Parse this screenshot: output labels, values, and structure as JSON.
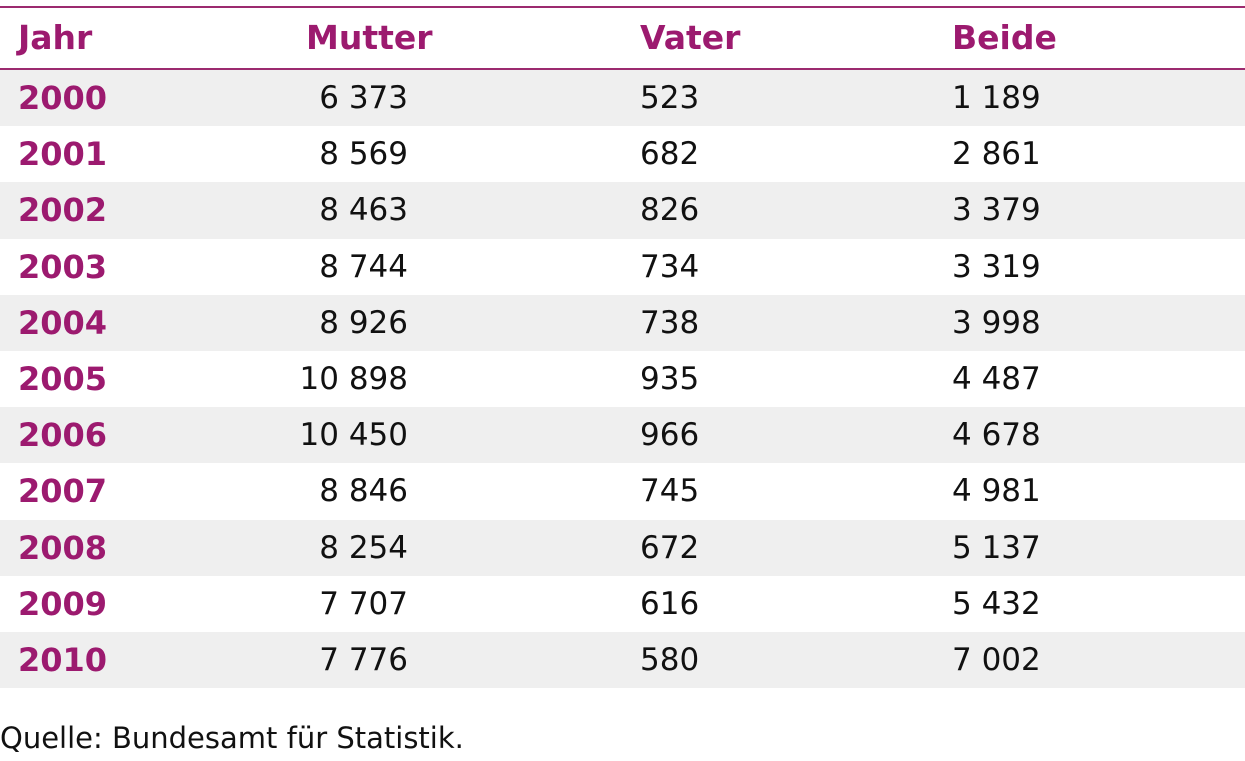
{
  "table": {
    "headers": [
      "Jahr",
      "Mutter",
      "Vater",
      "Beide"
    ],
    "rows": [
      [
        "2000",
        "6 373",
        "523",
        "1 189"
      ],
      [
        "2001",
        "8 569",
        "682",
        "2 861"
      ],
      [
        "2002",
        "8 463",
        "826",
        "3 379"
      ],
      [
        "2003",
        "8 744",
        "734",
        "3 319"
      ],
      [
        "2004",
        "8 926",
        "738",
        "3 998"
      ],
      [
        "2005",
        "10 898",
        "935",
        "4 487"
      ],
      [
        "2006",
        "10 450",
        "966",
        "4 678"
      ],
      [
        "2007",
        "8 846",
        "745",
        "4 981"
      ],
      [
        "2008",
        "8 254",
        "672",
        "5 137"
      ],
      [
        "2009",
        "7 707",
        "616",
        "5 432"
      ],
      [
        "2010",
        "7 776",
        "580",
        "7 002"
      ]
    ]
  },
  "chart_data": {
    "type": "table",
    "columns": [
      "Jahr",
      "Mutter",
      "Vater",
      "Beide"
    ],
    "x": [
      2000,
      2001,
      2002,
      2003,
      2004,
      2005,
      2006,
      2007,
      2008,
      2009,
      2010
    ],
    "series": [
      {
        "name": "Mutter",
        "values": [
          6373,
          8569,
          8463,
          8744,
          8926,
          10898,
          10450,
          8846,
          8254,
          7707,
          7776
        ]
      },
      {
        "name": "Vater",
        "values": [
          523,
          682,
          826,
          734,
          738,
          935,
          966,
          745,
          672,
          616,
          580
        ]
      },
      {
        "name": "Beide",
        "values": [
          1189,
          2861,
          3379,
          3319,
          3998,
          4487,
          4678,
          4981,
          5137,
          5432,
          7002
        ]
      }
    ]
  },
  "colors": {
    "accent": "#9c1a6f",
    "rule": "#9c2a6f",
    "row_shade": "#efefef",
    "text": "#111111"
  },
  "source": "Quelle: Bundesamt für Statistik."
}
